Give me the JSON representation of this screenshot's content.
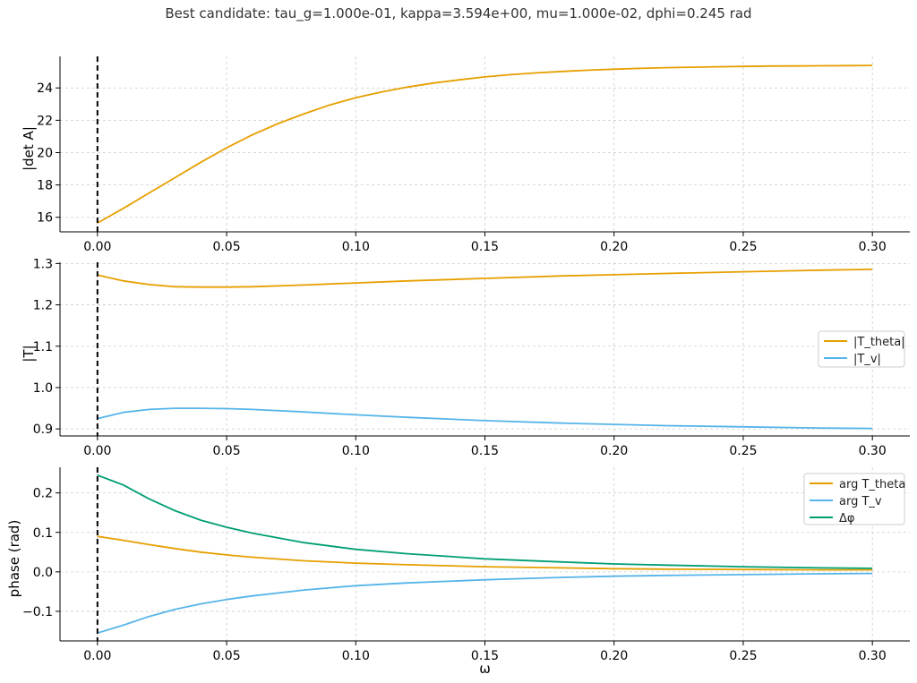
{
  "figure": {
    "title": "Best candidate: tau_g=1.000e-01, kappa=3.594e+00, mu=1.000e-02, dphi=0.245 rad"
  },
  "colors": {
    "orange": "#E69F00",
    "blue": "#56B4E9",
    "green": "#009E73",
    "marker": "#000000"
  },
  "chart_data": [
    {
      "type": "line",
      "ylabel": "|det A|",
      "xlabel": "",
      "xlim": [
        -0.0145,
        0.3145
      ],
      "ylim": [
        15.1,
        25.95
      ],
      "xticks": [
        0.0,
        0.05,
        0.1,
        0.15,
        0.2,
        0.25,
        0.3
      ],
      "xtick_labels": [
        "0.00",
        "0.05",
        "0.10",
        "0.15",
        "0.20",
        "0.25",
        "0.30"
      ],
      "yticks": [
        16,
        18,
        20,
        22,
        24
      ],
      "ytick_labels": [
        "16",
        "18",
        "20",
        "22",
        "24"
      ],
      "grid": true,
      "vline_x": 0.0,
      "legend": null,
      "series": [
        {
          "name": "",
          "color": "orange",
          "x": [
            0.0,
            0.01,
            0.02,
            0.03,
            0.04,
            0.05,
            0.06,
            0.07,
            0.08,
            0.09,
            0.1,
            0.11,
            0.12,
            0.13,
            0.14,
            0.15,
            0.16,
            0.17,
            0.18,
            0.19,
            0.2,
            0.21,
            0.22,
            0.23,
            0.24,
            0.25,
            0.26,
            0.27,
            0.28,
            0.29,
            0.3
          ],
          "y": [
            15.65,
            16.55,
            17.5,
            18.45,
            19.4,
            20.3,
            21.1,
            21.8,
            22.4,
            22.95,
            23.4,
            23.75,
            24.05,
            24.3,
            24.5,
            24.68,
            24.82,
            24.93,
            25.02,
            25.1,
            25.16,
            25.21,
            25.25,
            25.28,
            25.31,
            25.33,
            25.35,
            25.36,
            25.37,
            25.38,
            25.39
          ]
        }
      ]
    },
    {
      "type": "line",
      "ylabel": "|T|",
      "xlabel": "",
      "xlim": [
        -0.0145,
        0.3145
      ],
      "ylim": [
        0.883,
        1.303
      ],
      "xticks": [
        0.0,
        0.05,
        0.1,
        0.15,
        0.2,
        0.25,
        0.3
      ],
      "xtick_labels": [
        "0.00",
        "0.05",
        "0.10",
        "0.15",
        "0.20",
        "0.25",
        "0.30"
      ],
      "yticks": [
        0.9,
        1.0,
        1.1,
        1.2,
        1.3
      ],
      "ytick_labels": [
        "0.9",
        "1.0",
        "1.1",
        "1.2",
        "1.3"
      ],
      "grid": true,
      "vline_x": 0.0,
      "legend": "center-right",
      "series": [
        {
          "name": "|T_theta|",
          "color": "orange",
          "x": [
            0.0,
            0.01,
            0.02,
            0.03,
            0.04,
            0.05,
            0.06,
            0.08,
            0.1,
            0.12,
            0.15,
            0.18,
            0.2,
            0.22,
            0.25,
            0.28,
            0.3
          ],
          "y": [
            1.272,
            1.258,
            1.249,
            1.244,
            1.243,
            1.243,
            1.244,
            1.248,
            1.253,
            1.258,
            1.264,
            1.27,
            1.273,
            1.276,
            1.28,
            1.284,
            1.286
          ]
        },
        {
          "name": "|T_v|",
          "color": "blue",
          "x": [
            0.0,
            0.01,
            0.02,
            0.03,
            0.04,
            0.05,
            0.06,
            0.08,
            0.1,
            0.12,
            0.15,
            0.18,
            0.2,
            0.22,
            0.25,
            0.28,
            0.3
          ],
          "y": [
            0.925,
            0.94,
            0.947,
            0.95,
            0.95,
            0.949,
            0.947,
            0.941,
            0.934,
            0.928,
            0.92,
            0.914,
            0.911,
            0.908,
            0.905,
            0.902,
            0.901
          ]
        }
      ]
    },
    {
      "type": "line",
      "ylabel": "phase (rad)",
      "xlabel": "ω",
      "xlim": [
        -0.0145,
        0.3145
      ],
      "ylim": [
        -0.175,
        0.265
      ],
      "xticks": [
        0.0,
        0.05,
        0.1,
        0.15,
        0.2,
        0.25,
        0.3
      ],
      "xtick_labels": [
        "0.00",
        "0.05",
        "0.10",
        "0.15",
        "0.20",
        "0.25",
        "0.30"
      ],
      "yticks": [
        -0.1,
        0.0,
        0.1,
        0.2
      ],
      "ytick_labels": [
        "−0.1",
        "0.0",
        "0.1",
        "0.2"
      ],
      "grid": true,
      "vline_x": 0.0,
      "legend": "upper-right",
      "series": [
        {
          "name": "arg T_theta",
          "color": "orange",
          "x": [
            0.0,
            0.01,
            0.02,
            0.03,
            0.04,
            0.05,
            0.06,
            0.08,
            0.1,
            0.12,
            0.15,
            0.18,
            0.2,
            0.22,
            0.25,
            0.28,
            0.3
          ],
          "y": [
            0.09,
            0.08,
            0.069,
            0.059,
            0.05,
            0.043,
            0.037,
            0.028,
            0.022,
            0.018,
            0.013,
            0.01,
            0.008,
            0.007,
            0.006,
            0.005,
            0.005
          ]
        },
        {
          "name": "arg T_v",
          "color": "blue",
          "x": [
            0.0,
            0.01,
            0.02,
            0.03,
            0.04,
            0.05,
            0.06,
            0.08,
            0.1,
            0.12,
            0.15,
            0.18,
            0.2,
            0.22,
            0.25,
            0.28,
            0.3
          ],
          "y": [
            -0.155,
            -0.135,
            -0.113,
            -0.095,
            -0.081,
            -0.07,
            -0.061,
            -0.046,
            -0.035,
            -0.028,
            -0.02,
            -0.014,
            -0.011,
            -0.009,
            -0.007,
            -0.005,
            -0.004
          ]
        },
        {
          "name": "Δφ",
          "color": "green",
          "x": [
            0.0,
            0.01,
            0.02,
            0.03,
            0.04,
            0.05,
            0.06,
            0.08,
            0.1,
            0.12,
            0.15,
            0.18,
            0.2,
            0.22,
            0.25,
            0.28,
            0.3
          ],
          "y": [
            0.245,
            0.22,
            0.185,
            0.155,
            0.131,
            0.113,
            0.098,
            0.074,
            0.057,
            0.046,
            0.033,
            0.025,
            0.02,
            0.017,
            0.013,
            0.01,
            0.009
          ]
        }
      ]
    }
  ]
}
